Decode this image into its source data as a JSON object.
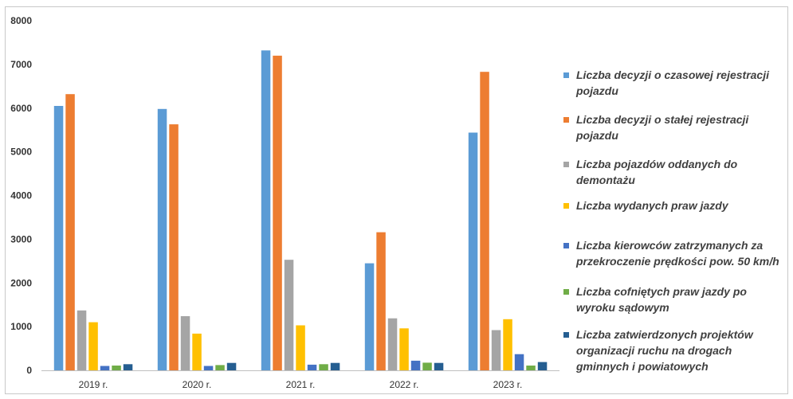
{
  "chart_data": {
    "type": "bar",
    "categories": [
      "2019 r.",
      "2020 r.",
      "2021 r.",
      "2022 r.",
      "2023 r."
    ],
    "ylim": [
      0,
      8000
    ],
    "yticks": [
      0,
      1000,
      2000,
      3000,
      4000,
      5000,
      6000,
      7000,
      8000
    ],
    "legend_position": "right",
    "grid": false,
    "series": [
      {
        "name": "Liczba decyzji o czasowej rejestracji pojazdu",
        "color": "#5b9bd5",
        "values": [
          6050,
          5980,
          7320,
          2450,
          5440
        ]
      },
      {
        "name": "Liczba decyzji o stałej rejestracji pojazdu",
        "color": "#ed7d31",
        "values": [
          6320,
          5630,
          7200,
          3160,
          6830
        ]
      },
      {
        "name": "Liczba pojazdów oddanych do demontażu",
        "color": "#a5a5a5",
        "values": [
          1370,
          1240,
          2530,
          1190,
          920
        ]
      },
      {
        "name": "Liczba wydanych praw jazdy",
        "color": "#ffc000",
        "values": [
          1100,
          840,
          1030,
          960,
          1170
        ]
      },
      {
        "name": "Liczba kierowców zatrzymanych za przekroczenie prędkości pow. 50 km/h",
        "color": "#4472c4",
        "values": [
          100,
          100,
          130,
          220,
          370
        ]
      },
      {
        "name": "Liczba cofniętych praw jazdy po wyroku sądowym",
        "color": "#70ad47",
        "values": [
          110,
          120,
          140,
          175,
          110
        ]
      },
      {
        "name": "Liczba zatwierdzonych projektów organizacji ruchu na drogach gminnych i powiatowych",
        "color": "#255e91",
        "values": [
          140,
          170,
          170,
          170,
          190
        ]
      }
    ]
  }
}
